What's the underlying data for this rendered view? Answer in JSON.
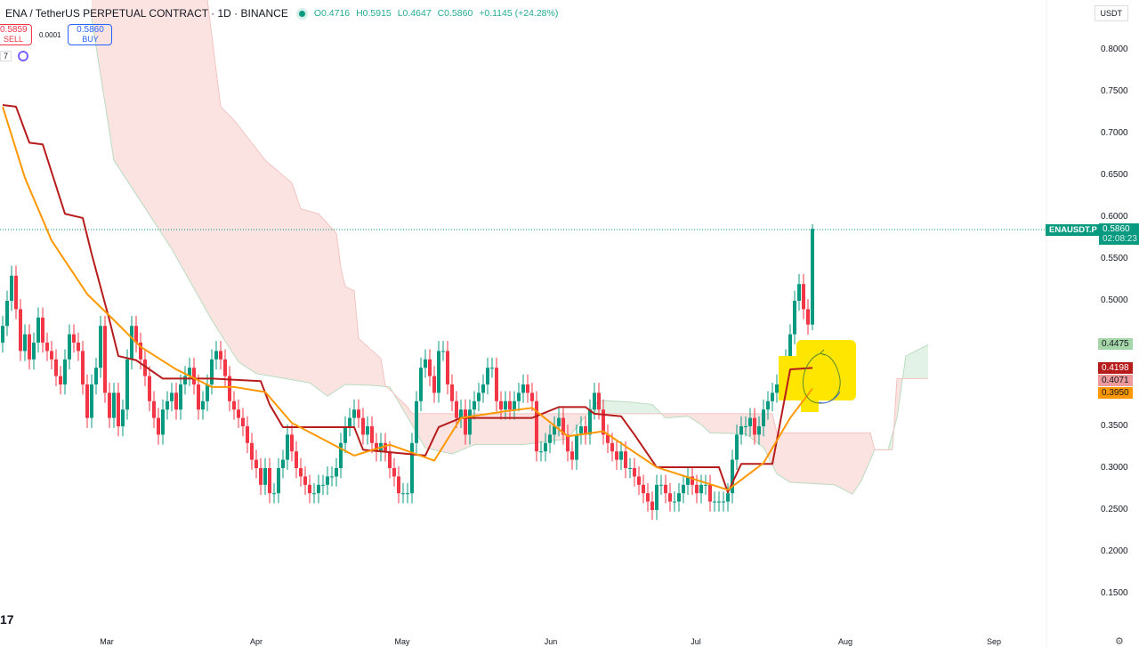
{
  "header": {
    "symbol": "ENA / TetherUS PERPETUAL CONTRACT · 1D · BINANCE",
    "open": "O0.4716",
    "high": "H0.5915",
    "low": "L0.4647",
    "close": "C0.5860",
    "change": "+0.1145 (+24.28%)"
  },
  "trade": {
    "sell_price": "0.5859",
    "sell_label": "SELL",
    "spread": "0.0001",
    "buy_price": "0.5860",
    "buy_label": "BUY"
  },
  "indicator_count": "7",
  "currency": "USDT",
  "price_axis": [
    "0.8000",
    "0.7500",
    "0.7000",
    "0.6500",
    "0.6000",
    "0.5500",
    "0.5000",
    "0.3500",
    "0.3000",
    "0.2500",
    "0.2000",
    "0.1500"
  ],
  "price_labels": {
    "symbol_tag": "ENAUSDT.P",
    "last_price": "0.5860",
    "countdown": "02:08:23",
    "span_a": "0.4475",
    "line_red": "0.4198",
    "span_b": "0.4071",
    "line_orange": "0.3950"
  },
  "time_axis": [
    "Mar",
    "Apr",
    "May",
    "Jun",
    "Jul",
    "Aug",
    "Sep"
  ],
  "logo_text": "17",
  "colors": {
    "up": "#089981",
    "down": "#f23645",
    "red_line": "#b71c1c",
    "orange_line": "#ff9800",
    "cloud_bear": "#fbe3e1",
    "cloud_bull": "#e3f2e6",
    "highlight": "#ffe600",
    "last_price": "#089981"
  },
  "chart_data": {
    "type": "candlestick",
    "ylim": [
      0.11,
      0.86
    ],
    "grid": false,
    "last_candle": {
      "open": 0.4716,
      "high": 0.5915,
      "low": 0.4647,
      "close": 0.586
    },
    "closes": [
      0.47,
      0.5,
      0.53,
      0.49,
      0.44,
      0.46,
      0.43,
      0.45,
      0.48,
      0.45,
      0.44,
      0.43,
      0.41,
      0.4,
      0.43,
      0.46,
      0.45,
      0.44,
      0.4,
      0.36,
      0.4,
      0.42,
      0.47,
      0.39,
      0.36,
      0.39,
      0.35,
      0.37,
      0.43,
      0.47,
      0.45,
      0.43,
      0.41,
      0.38,
      0.36,
      0.34,
      0.37,
      0.38,
      0.39,
      0.37,
      0.4,
      0.41,
      0.42,
      0.4,
      0.37,
      0.38,
      0.4,
      0.43,
      0.44,
      0.43,
      0.41,
      0.38,
      0.37,
      0.36,
      0.35,
      0.33,
      0.31,
      0.3,
      0.28,
      0.3,
      0.27,
      0.27,
      0.3,
      0.31,
      0.34,
      0.32,
      0.3,
      0.29,
      0.28,
      0.27,
      0.27,
      0.28,
      0.28,
      0.29,
      0.29,
      0.3,
      0.33,
      0.35,
      0.36,
      0.37,
      0.36,
      0.34,
      0.35,
      0.33,
      0.32,
      0.33,
      0.32,
      0.3,
      0.29,
      0.27,
      0.27,
      0.27,
      0.33,
      0.38,
      0.42,
      0.43,
      0.41,
      0.39,
      0.44,
      0.44,
      0.4,
      0.38,
      0.36,
      0.37,
      0.34,
      0.37,
      0.38,
      0.39,
      0.4,
      0.42,
      0.42,
      0.38,
      0.37,
      0.38,
      0.37,
      0.38,
      0.39,
      0.4,
      0.39,
      0.38,
      0.32,
      0.32,
      0.33,
      0.34,
      0.35,
      0.36,
      0.34,
      0.32,
      0.31,
      0.34,
      0.35,
      0.34,
      0.37,
      0.39,
      0.37,
      0.34,
      0.33,
      0.32,
      0.31,
      0.32,
      0.3,
      0.3,
      0.29,
      0.28,
      0.27,
      0.26,
      0.25,
      0.28,
      0.28,
      0.27,
      0.26,
      0.26,
      0.27,
      0.28,
      0.29,
      0.28,
      0.27,
      0.28,
      0.28,
      0.26,
      0.26,
      0.26,
      0.26,
      0.27,
      0.31,
      0.34,
      0.35,
      0.35,
      0.36,
      0.34,
      0.35,
      0.37,
      0.38,
      0.39,
      0.4,
      0.41,
      0.43,
      0.46,
      0.5,
      0.52,
      0.49,
      0.4716,
      0.586
    ],
    "red_line": [
      [
        0,
        0.734
      ],
      [
        3,
        0.732
      ],
      [
        6,
        0.689
      ],
      [
        9,
        0.687
      ],
      [
        14,
        0.604
      ],
      [
        18,
        0.599
      ],
      [
        20,
        0.556
      ],
      [
        24,
        0.477
      ],
      [
        26,
        0.434
      ],
      [
        30,
        0.429
      ],
      [
        36,
        0.407
      ],
      [
        47,
        0.407
      ],
      [
        58,
        0.404
      ],
      [
        60,
        0.376
      ],
      [
        63,
        0.349
      ],
      [
        79,
        0.349
      ],
      [
        81,
        0.322
      ],
      [
        95,
        0.315
      ],
      [
        98,
        0.349
      ],
      [
        103,
        0.36
      ],
      [
        119,
        0.36
      ],
      [
        125,
        0.373
      ],
      [
        131,
        0.373
      ],
      [
        133,
        0.365
      ],
      [
        139,
        0.362
      ],
      [
        142,
        0.34
      ],
      [
        147,
        0.301
      ],
      [
        161,
        0.301
      ],
      [
        163,
        0.271
      ],
      [
        166,
        0.305
      ],
      [
        173,
        0.305
      ],
      [
        177,
        0.418
      ],
      [
        182,
        0.4198
      ]
    ],
    "orange_line": [
      [
        0,
        0.732
      ],
      [
        5,
        0.647
      ],
      [
        11,
        0.572
      ],
      [
        19,
        0.508
      ],
      [
        25,
        0.477
      ],
      [
        31,
        0.445
      ],
      [
        39,
        0.418
      ],
      [
        47,
        0.397
      ],
      [
        52,
        0.397
      ],
      [
        59,
        0.391
      ],
      [
        65,
        0.354
      ],
      [
        79,
        0.315
      ],
      [
        87,
        0.328
      ],
      [
        97,
        0.309
      ],
      [
        103,
        0.36
      ],
      [
        113,
        0.368
      ],
      [
        119,
        0.372
      ],
      [
        127,
        0.338
      ],
      [
        135,
        0.344
      ],
      [
        147,
        0.301
      ],
      [
        163,
        0.274
      ],
      [
        171,
        0.306
      ],
      [
        177,
        0.36
      ],
      [
        182,
        0.395
      ]
    ],
    "span_a": [
      [
        20,
        0.838
      ],
      [
        25,
        0.668
      ],
      [
        38,
        0.562
      ],
      [
        47,
        0.477
      ],
      [
        53,
        0.427
      ],
      [
        57,
        0.413
      ],
      [
        69,
        0.402
      ],
      [
        73,
        0.386
      ],
      [
        77,
        0.4
      ],
      [
        83,
        0.399
      ],
      [
        87,
        0.397
      ],
      [
        90,
        0.37
      ],
      [
        95,
        0.324
      ],
      [
        101,
        0.317
      ],
      [
        106,
        0.328
      ],
      [
        117,
        0.328
      ],
      [
        121,
        0.331
      ],
      [
        127,
        0.335
      ],
      [
        130,
        0.356
      ],
      [
        134,
        0.381
      ],
      [
        141,
        0.379
      ],
      [
        146,
        0.376
      ],
      [
        149,
        0.36
      ],
      [
        154,
        0.362
      ],
      [
        157,
        0.352
      ],
      [
        159,
        0.342
      ],
      [
        167,
        0.341
      ],
      [
        171,
        0.325
      ],
      [
        174,
        0.293
      ],
      [
        177,
        0.283
      ],
      [
        187,
        0.28
      ],
      [
        191,
        0.269
      ],
      [
        193,
        0.285
      ],
      [
        196,
        0.322
      ],
      [
        199,
        0.322
      ],
      [
        201,
        0.36
      ],
      [
        203,
        0.434
      ],
      [
        208,
        0.4475
      ]
    ],
    "span_b": [
      [
        20,
        0.9
      ],
      [
        46,
        0.86
      ],
      [
        47,
        0.817
      ],
      [
        49,
        0.732
      ],
      [
        52,
        0.716
      ],
      [
        59,
        0.668
      ],
      [
        65,
        0.641
      ],
      [
        67,
        0.61
      ],
      [
        71,
        0.604
      ],
      [
        75,
        0.581
      ],
      [
        76,
        0.54
      ],
      [
        77,
        0.517
      ],
      [
        79,
        0.512
      ],
      [
        80,
        0.455
      ],
      [
        85,
        0.431
      ],
      [
        86,
        0.399
      ],
      [
        91,
        0.373
      ],
      [
        92,
        0.365
      ],
      [
        173,
        0.365
      ],
      [
        174,
        0.342
      ],
      [
        195,
        0.342
      ],
      [
        196,
        0.322
      ],
      [
        200,
        0.322
      ],
      [
        201,
        0.4071
      ],
      [
        208,
        0.4071
      ]
    ]
  }
}
